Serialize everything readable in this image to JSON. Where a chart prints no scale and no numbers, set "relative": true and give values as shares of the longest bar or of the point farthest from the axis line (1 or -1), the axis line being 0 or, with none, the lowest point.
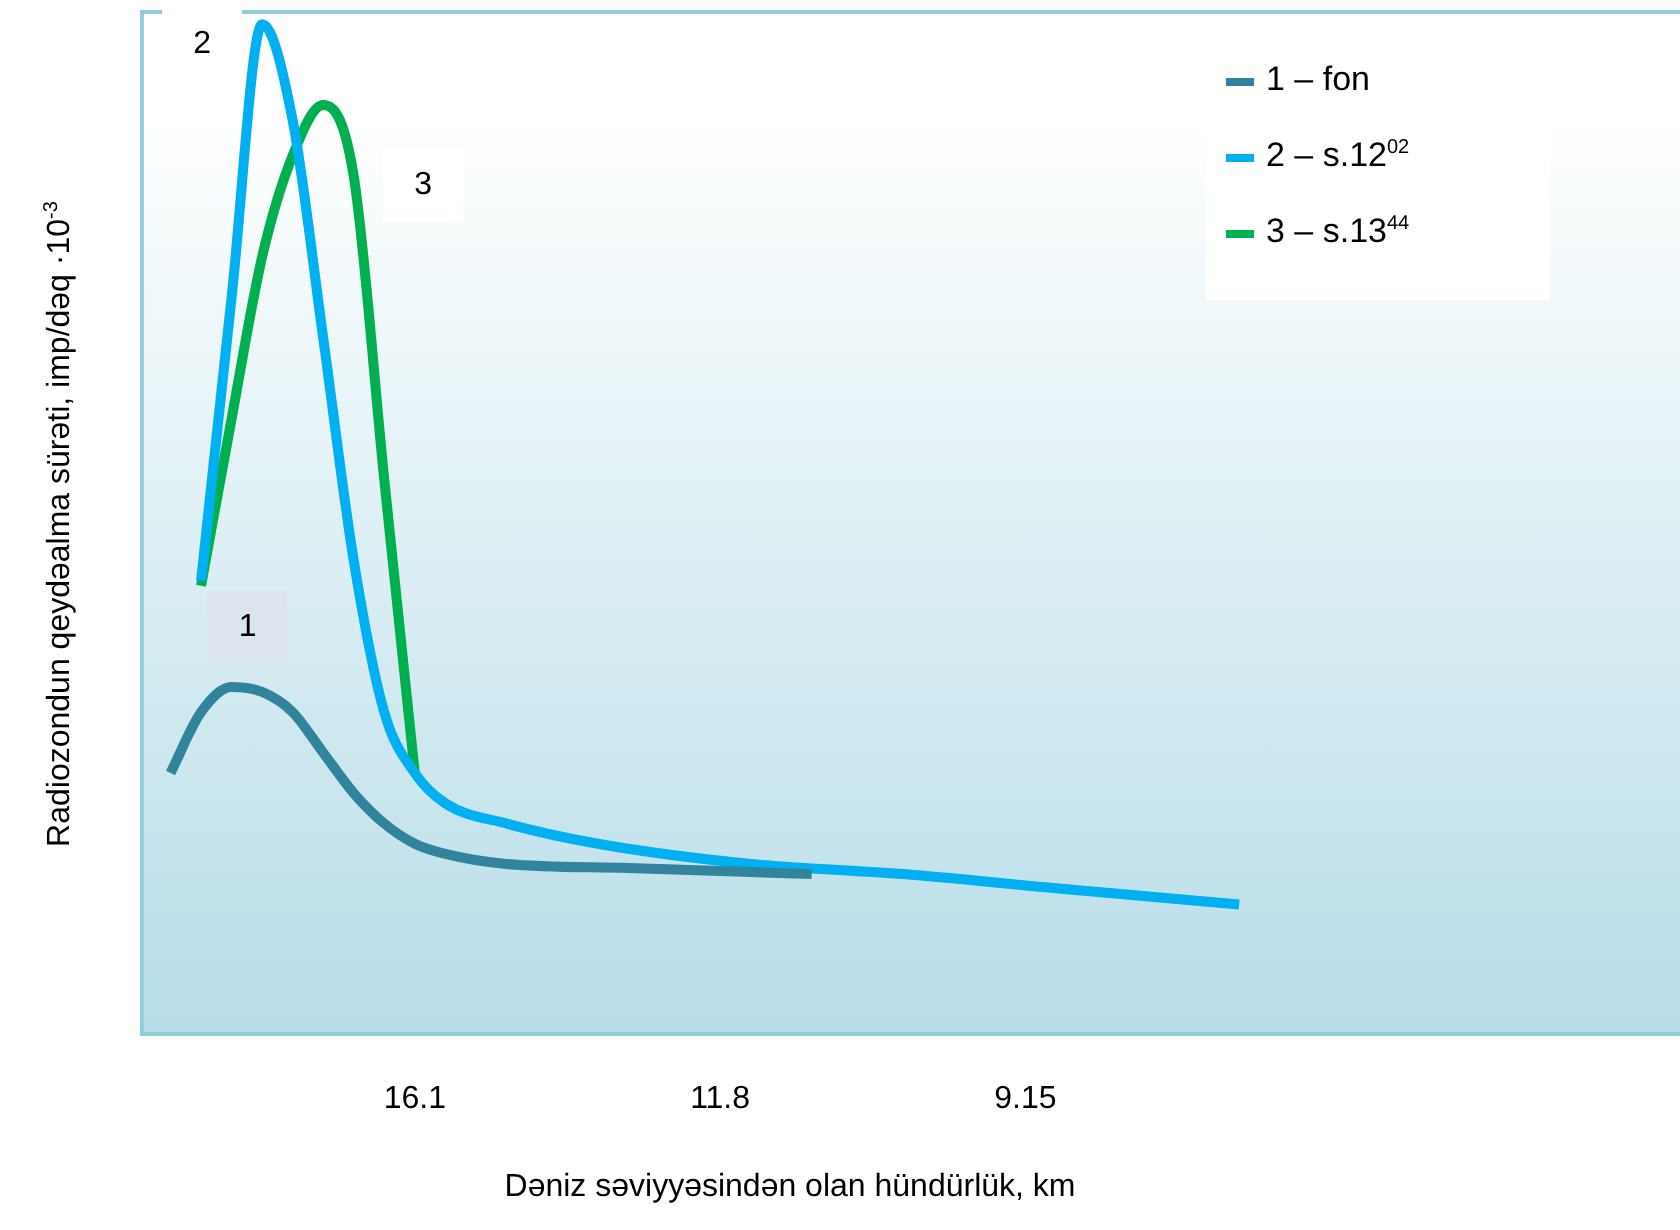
{
  "chart_data": {
    "type": "line",
    "relative": true,
    "xlabel": "Dəniz səviyyəsindən olan hündürlük, km",
    "ylabel": "Radiozondun qeydəalma sürəti, imp/dəq ·10$^{-3}$",
    "categories": [
      null,
      null,
      null,
      null,
      null,
      null,
      null,
      null,
      null,
      "16.1",
      null,
      null,
      null,
      null,
      null,
      null,
      null,
      null,
      null,
      "11.8",
      null,
      null,
      null,
      null,
      null,
      null,
      null,
      null,
      null,
      "9.15",
      null,
      null,
      null,
      null,
      null,
      null,
      null,
      null,
      null,
      null,
      null,
      null,
      null,
      null,
      null,
      null,
      null,
      null,
      null,
      null
    ],
    "series": [
      {
        "name": "1 – fon",
        "color": "#31849b",
        "values": [
          null,
          0.26,
          0.32,
          0.345,
          0.34,
          0.32,
          0.28,
          0.24,
          0.21,
          0.19,
          0.18,
          null,
          0.17,
          null,
          null,
          null,
          0.166,
          null,
          null,
          null,
          null,
          null,
          0.16,
          null,
          null,
          null,
          null,
          null,
          null,
          null,
          null,
          null,
          null,
          null,
          null,
          null,
          null,
          null,
          null,
          null,
          null,
          null,
          null,
          null,
          null,
          null,
          null,
          null,
          null,
          null
        ]
      },
      {
        "name": "2 – s.12$^{02}$",
        "color": "#00b0f0",
        "values": [
          null,
          null,
          0.45,
          0.73,
          1,
          0.905,
          0.69,
          0.47,
          0.32,
          0.26,
          0.23,
          null,
          0.21,
          null,
          null,
          0.19,
          null,
          null,
          null,
          null,
          0.17,
          null,
          null,
          null,
          null,
          0.16,
          null,
          null,
          null,
          null,
          0.146,
          null,
          null,
          null,
          null,
          null,
          0.13,
          null,
          null,
          null,
          null,
          null,
          null,
          null,
          null,
          null,
          null,
          null,
          null,
          null
        ]
      },
      {
        "name": "3 – s.13$^{44}$",
        "color": "#00b050",
        "values": [
          null,
          null,
          0.445,
          0.61,
          0.77,
          0.87,
          0.92,
          0.85,
          0.55,
          0.26,
          null,
          null,
          null,
          null,
          null,
          null,
          null,
          null,
          null,
          null,
          null,
          null,
          null,
          null,
          null,
          null,
          null,
          null,
          null,
          null,
          null,
          null,
          null,
          null,
          null,
          null,
          null,
          null,
          null,
          null,
          null,
          null,
          null,
          null,
          null,
          null,
          null,
          null,
          null,
          null
        ]
      }
    ],
    "annotations": [
      "1",
      "2",
      "3"
    ],
    "legend": "top right",
    "marker": "none",
    "grid": false
  }
}
